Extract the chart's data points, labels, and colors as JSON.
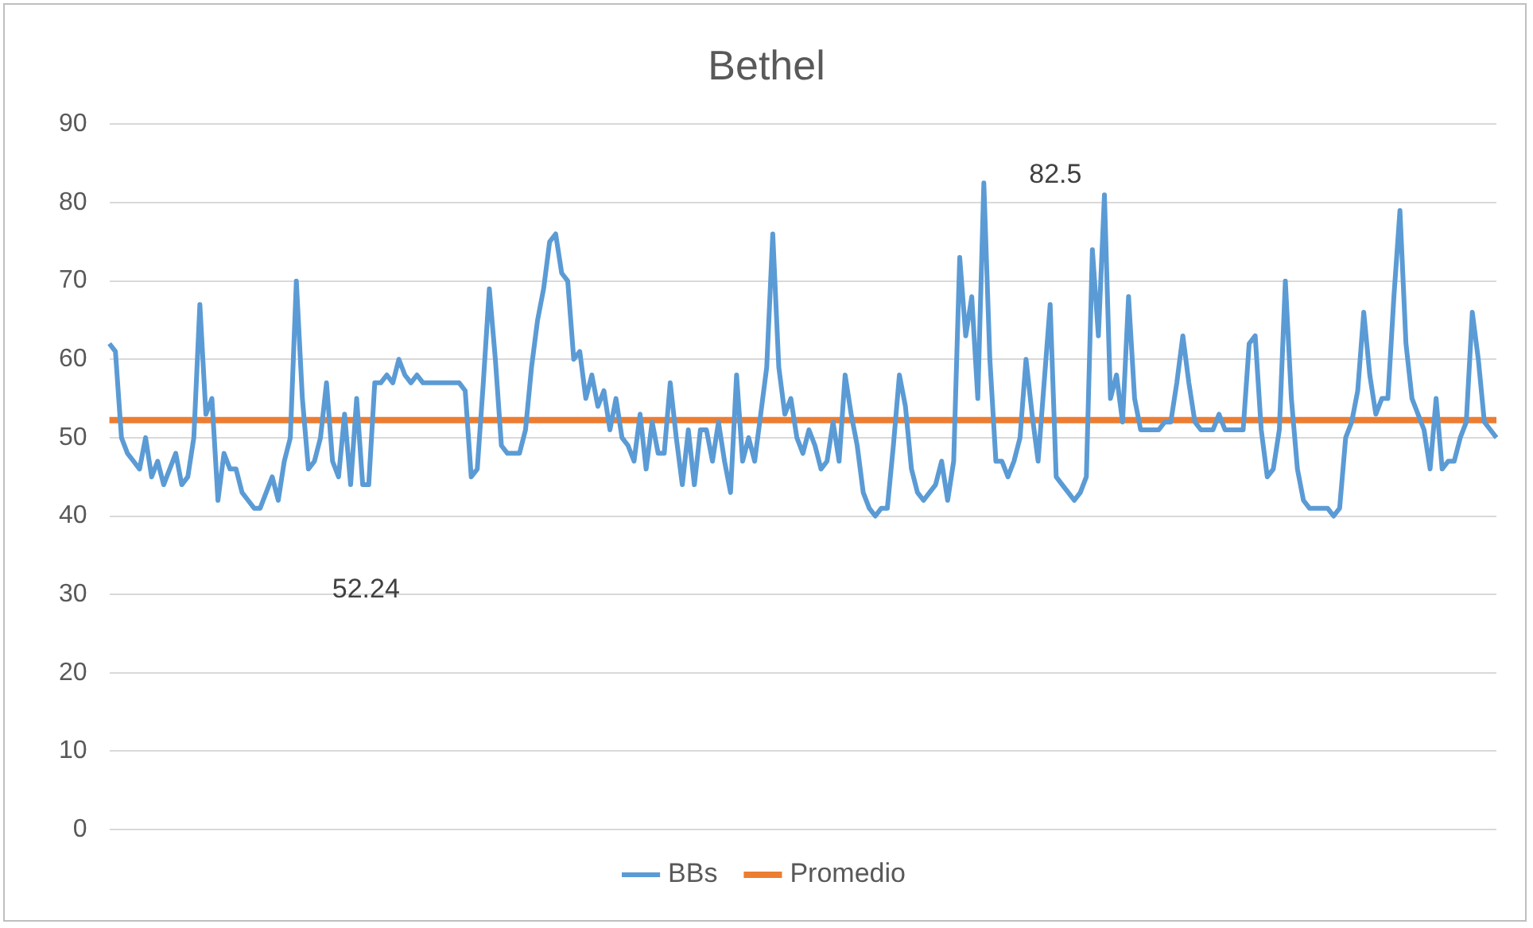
{
  "chart_data": {
    "type": "line",
    "title": "Bethel",
    "categories": [
      null,
      null,
      null,
      null,
      null,
      null,
      null,
      null,
      null,
      null,
      null,
      null,
      null,
      null,
      null,
      null,
      null,
      null,
      null,
      null,
      null,
      null,
      null,
      null,
      null,
      null,
      null,
      null,
      null,
      null,
      null,
      null,
      null,
      null,
      null,
      null,
      null,
      null,
      null,
      null,
      null,
      null,
      null,
      null,
      null,
      null,
      null,
      null,
      null,
      null,
      null,
      null,
      null,
      null,
      null,
      null,
      null,
      null,
      null,
      null,
      null,
      null,
      null,
      null,
      null,
      null,
      null,
      null,
      null,
      null,
      null,
      null,
      null,
      null,
      null,
      null,
      null,
      null,
      null,
      null,
      null,
      null,
      null,
      null,
      null,
      null,
      null,
      null,
      null,
      null,
      null,
      null,
      null,
      null,
      null,
      null,
      null,
      null,
      null,
      null,
      null,
      null,
      null,
      null,
      null,
      null,
      null,
      null,
      null,
      null,
      null,
      null,
      null,
      null,
      null,
      null,
      null,
      null,
      null,
      null,
      null,
      null,
      null,
      null,
      null,
      null,
      null,
      null,
      null,
      null,
      null,
      null,
      null,
      null,
      null,
      null,
      null,
      null,
      null,
      null,
      null,
      null,
      null,
      null,
      null,
      null,
      null,
      null,
      null,
      null,
      null,
      null,
      null,
      null,
      null,
      null,
      null,
      null,
      null,
      null,
      null,
      null,
      null,
      null,
      null,
      null,
      null,
      null,
      null,
      null,
      null,
      null,
      null,
      null,
      null,
      null,
      null,
      null,
      null,
      null,
      null,
      null,
      null,
      null,
      null,
      null,
      null,
      null,
      null,
      null,
      null,
      null,
      null,
      null,
      null,
      null,
      null,
      null,
      null,
      null,
      null,
      null,
      null,
      null,
      null,
      null,
      null,
      null,
      null,
      null,
      null,
      null,
      null,
      null,
      null,
      null,
      null,
      null,
      null,
      null,
      null,
      null,
      null,
      null,
      null,
      null,
      null,
      null,
      null,
      null,
      null
    ],
    "series": [
      {
        "name": "BBs",
        "color": "#5b9bd5",
        "values": [
          62,
          61,
          50,
          48,
          47,
          46,
          50,
          45,
          47,
          44,
          46,
          48,
          44,
          45,
          50,
          67,
          53,
          55,
          42,
          48,
          46,
          46,
          43,
          42,
          41,
          41,
          43,
          45,
          42,
          47,
          50,
          70,
          55,
          46,
          47,
          50,
          57,
          47,
          45,
          53,
          44,
          55,
          44,
          44,
          57,
          57,
          58,
          57,
          60,
          58,
          57,
          58,
          57,
          57,
          57,
          57,
          57,
          57,
          57,
          56,
          45,
          46,
          57,
          69,
          60,
          49,
          48,
          48,
          48,
          51,
          59,
          65,
          69,
          75,
          76,
          71,
          70,
          60,
          61,
          55,
          58,
          54,
          56,
          51,
          55,
          50,
          49,
          47,
          53,
          46,
          52,
          48,
          48,
          57,
          50,
          44,
          51,
          44,
          51,
          51,
          47,
          52,
          47,
          43,
          58,
          47,
          50,
          47,
          53,
          59,
          76,
          59,
          53,
          55,
          50,
          48,
          51,
          49,
          46,
          47,
          52,
          47,
          58,
          53,
          49,
          43,
          41,
          40,
          41,
          41,
          49,
          58,
          54,
          46,
          43,
          42,
          43,
          44,
          47,
          42,
          47,
          73,
          63,
          68,
          55,
          82.5,
          60,
          47,
          47,
          45,
          47,
          50,
          60,
          53,
          47,
          57,
          67,
          45,
          44,
          43,
          42,
          43,
          45,
          74,
          63,
          81,
          55,
          58,
          52,
          68,
          55,
          51,
          51,
          51,
          51,
          52,
          52,
          57,
          63,
          57,
          52,
          51,
          51,
          51,
          53,
          51,
          51,
          51,
          51,
          62,
          63,
          51,
          45,
          46,
          51,
          70,
          55,
          46,
          42,
          41,
          41,
          41,
          41,
          40,
          41,
          50,
          52,
          56,
          66,
          58,
          53,
          55,
          55,
          68,
          79,
          62,
          55,
          53,
          51,
          46,
          55,
          46,
          47,
          47,
          50,
          52,
          66,
          60,
          52,
          51,
          50
        ]
      },
      {
        "name": "Promedio",
        "color": "#ed7d31",
        "values": [
          52.24,
          52.24,
          52.24,
          52.24,
          52.24,
          52.24,
          52.24,
          52.24,
          52.24,
          52.24,
          52.24,
          52.24,
          52.24,
          52.24,
          52.24,
          52.24,
          52.24,
          52.24,
          52.24,
          52.24,
          52.24,
          52.24,
          52.24,
          52.24,
          52.24,
          52.24,
          52.24,
          52.24,
          52.24,
          52.24,
          52.24,
          52.24,
          52.24,
          52.24,
          52.24,
          52.24,
          52.24,
          52.24,
          52.24,
          52.24,
          52.24,
          52.24,
          52.24,
          52.24,
          52.24,
          52.24,
          52.24,
          52.24,
          52.24,
          52.24,
          52.24,
          52.24,
          52.24,
          52.24,
          52.24,
          52.24,
          52.24,
          52.24,
          52.24,
          52.24,
          52.24,
          52.24,
          52.24,
          52.24,
          52.24,
          52.24,
          52.24,
          52.24,
          52.24,
          52.24,
          52.24,
          52.24,
          52.24,
          52.24,
          52.24,
          52.24,
          52.24,
          52.24,
          52.24,
          52.24,
          52.24,
          52.24,
          52.24,
          52.24,
          52.24,
          52.24,
          52.24,
          52.24,
          52.24,
          52.24,
          52.24,
          52.24,
          52.24,
          52.24,
          52.24,
          52.24,
          52.24,
          52.24,
          52.24,
          52.24,
          52.24,
          52.24,
          52.24,
          52.24,
          52.24,
          52.24,
          52.24,
          52.24,
          52.24,
          52.24,
          52.24,
          52.24,
          52.24,
          52.24,
          52.24,
          52.24,
          52.24,
          52.24,
          52.24,
          52.24,
          52.24,
          52.24,
          52.24,
          52.24,
          52.24,
          52.24,
          52.24,
          52.24,
          52.24,
          52.24,
          52.24,
          52.24,
          52.24,
          52.24,
          52.24,
          52.24,
          52.24,
          52.24,
          52.24,
          52.24,
          52.24,
          52.24,
          52.24,
          52.24,
          52.24,
          52.24,
          52.24,
          52.24,
          52.24,
          52.24,
          52.24,
          52.24,
          52.24,
          52.24,
          52.24,
          52.24,
          52.24,
          52.24,
          52.24,
          52.24,
          52.24,
          52.24,
          52.24,
          52.24,
          52.24,
          52.24,
          52.24,
          52.24,
          52.24,
          52.24,
          52.24,
          52.24,
          52.24,
          52.24,
          52.24,
          52.24,
          52.24,
          52.24,
          52.24,
          52.24,
          52.24,
          52.24,
          52.24,
          52.24,
          52.24,
          52.24,
          52.24,
          52.24,
          52.24,
          52.24,
          52.24,
          52.24,
          52.24,
          52.24,
          52.24,
          52.24,
          52.24,
          52.24,
          52.24,
          52.24,
          52.24,
          52.24,
          52.24,
          52.24,
          52.24,
          52.24,
          52.24,
          52.24,
          52.24,
          52.24,
          52.24,
          52.24,
          52.24,
          52.24,
          52.24,
          52.24,
          52.24,
          52.24,
          52.24,
          52.24,
          52.24,
          52.24,
          52.24,
          52.24,
          52.24,
          52.24,
          52.24,
          52.24,
          52.24,
          52.24,
          52.24
        ]
      }
    ],
    "ylim": [
      0,
      90
    ],
    "yticks": [
      0,
      10,
      20,
      30,
      40,
      50,
      60,
      70,
      80,
      90
    ],
    "grid": "y",
    "legend": "bottom",
    "marker": "none",
    "line_style": "solid",
    "annotations": [
      "52.24",
      "82.5"
    ]
  }
}
